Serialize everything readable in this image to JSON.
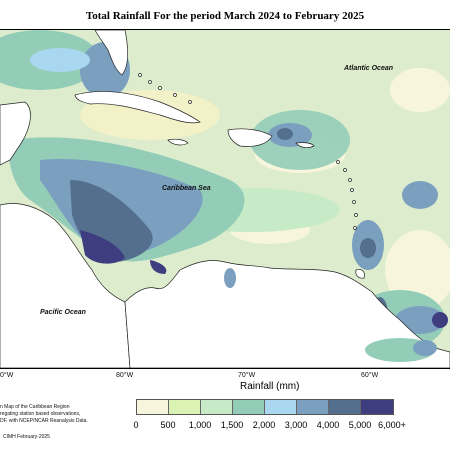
{
  "title": "Total Rainfall For the period March 2024 to February 2025",
  "map": {
    "labels": {
      "atlantic": "Atlantic Ocean",
      "caribbean": "Caribbean Sea",
      "pacific": "Pacific Ocean"
    },
    "lon_ticks": [
      "0°W",
      "80°W",
      "70°W",
      "60°W"
    ]
  },
  "legend": {
    "title": "Rainfall (mm)",
    "colors": [
      "#f7f6dc",
      "#daf2b4",
      "#c6ebc6",
      "#93cdb8",
      "#a9d7f0",
      "#7a9fbf",
      "#546f8e",
      "#3d3d80"
    ],
    "ticks": [
      "0",
      "500",
      "1,000",
      "1,500",
      "2,000",
      "3,000",
      "4,000",
      "5,000",
      "6,000+"
    ]
  },
  "footnote": {
    "lines": [
      "n Map of the Caribbean Region",
      "regating station based observations,",
      "DF, with NCEP/NCAR Reanalysis Data."
    ],
    "credit": "CIMH February-2025"
  }
}
